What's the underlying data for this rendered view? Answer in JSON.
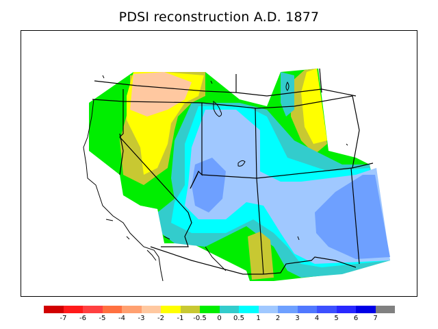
{
  "title": "PDSI reconstruction A.D. 1877",
  "legend": {
    "colors": [
      "#d10000",
      "#ff1a1a",
      "#ff4040",
      "#ff7040",
      "#ffa070",
      "#ffc8a0",
      "#ffff00",
      "#c8c832",
      "#00ee00",
      "#33cccc",
      "#00ffff",
      "#a0c8ff",
      "#6ea0ff",
      "#5078ff",
      "#3c50ff",
      "#2828ff",
      "#0000e6",
      "#808080"
    ],
    "labels": [
      "-7",
      "-6",
      "-5",
      "-4",
      "-3",
      "-2",
      "-1",
      "-0.5",
      "0",
      "0.5",
      "1",
      "2",
      "3",
      "4",
      "5",
      "6",
      "7"
    ]
  }
}
